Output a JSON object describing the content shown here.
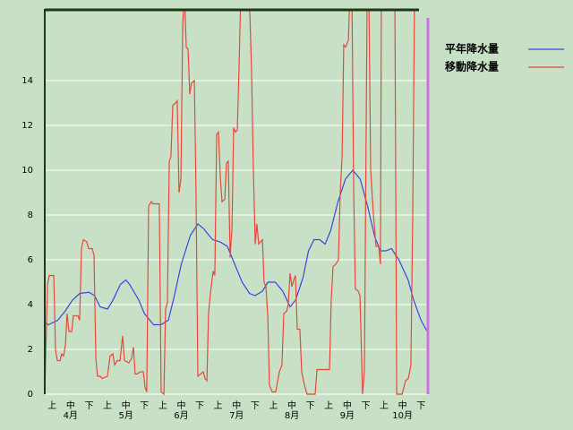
{
  "chart_data": {
    "type": "line",
    "xlim": [
      0,
      208
    ],
    "ylim": [
      0,
      17.2
    ],
    "yticks": [
      0,
      2,
      4,
      6,
      8,
      10,
      12,
      14
    ],
    "xticks": [
      {
        "value": 4,
        "label": "上"
      },
      {
        "value": 14,
        "label": "中"
      },
      {
        "value": 24,
        "label": "下"
      },
      {
        "value": 34,
        "label": "上"
      },
      {
        "value": 44,
        "label": "中"
      },
      {
        "value": 54,
        "label": "下"
      },
      {
        "value": 64,
        "label": "上"
      },
      {
        "value": 74,
        "label": "中"
      },
      {
        "value": 84,
        "label": "下"
      },
      {
        "value": 94,
        "label": "上"
      },
      {
        "value": 104,
        "label": "中"
      },
      {
        "value": 114,
        "label": "下"
      },
      {
        "value": 124,
        "label": "上"
      },
      {
        "value": 134,
        "label": "中"
      },
      {
        "value": 144,
        "label": "下"
      },
      {
        "value": 154,
        "label": "上"
      },
      {
        "value": 164,
        "label": "中"
      },
      {
        "value": 174,
        "label": "下"
      },
      {
        "value": 184,
        "label": "上"
      },
      {
        "value": 194,
        "label": "中"
      },
      {
        "value": 204,
        "label": "下"
      }
    ],
    "month_ticks": [
      {
        "value": 14,
        "label": "4月"
      },
      {
        "value": 44,
        "label": "5月"
      },
      {
        "value": 74,
        "label": "6月"
      },
      {
        "value": 104,
        "label": "7月"
      },
      {
        "value": 134,
        "label": "8月"
      },
      {
        "value": 164,
        "label": "9月"
      },
      {
        "value": 194,
        "label": "10月"
      }
    ],
    "grid": true,
    "legend": "top-right",
    "series": [
      {
        "name": "平年降水量",
        "color": "#3a46e0",
        "x": [
          0,
          2,
          7,
          11,
          15,
          19,
          24,
          27,
          30,
          34,
          37,
          41,
          44,
          46,
          51,
          54,
          59,
          63,
          67,
          70,
          74,
          79,
          83,
          86,
          91,
          95,
          99,
          103,
          107,
          111,
          114,
          118,
          121,
          125,
          129,
          133,
          136,
          140,
          143,
          146,
          149,
          152,
          155,
          159,
          163,
          167,
          171,
          175,
          179,
          182,
          185,
          188,
          192,
          197,
          200,
          204,
          208
        ],
        "values": [
          3.2,
          3.1,
          3.3,
          3.7,
          4.2,
          4.5,
          4.55,
          4.4,
          3.9,
          3.8,
          4.2,
          4.9,
          5.1,
          4.9,
          4.2,
          3.6,
          3.1,
          3.1,
          3.3,
          4.3,
          5.8,
          7.1,
          7.6,
          7.4,
          6.9,
          6.8,
          6.6,
          5.8,
          5.0,
          4.5,
          4.4,
          4.6,
          5.0,
          5.0,
          4.6,
          3.9,
          4.2,
          5.2,
          6.4,
          6.9,
          6.9,
          6.7,
          7.3,
          8.6,
          9.6,
          10.0,
          9.6,
          8.4,
          7.0,
          6.4,
          6.4,
          6.5,
          6.0,
          5.1,
          4.2,
          3.3,
          2.7
        ]
      },
      {
        "name": "移動降水量",
        "color": "#e8483a",
        "x": [
          0,
          1.5,
          2.4,
          4.9,
          5.8,
          6.8,
          8.3,
          9.2,
          10.2,
          11.2,
          12.1,
          13.1,
          14.6,
          15.5,
          18,
          18.9,
          19.9,
          20.9,
          22.8,
          23.8,
          25.7,
          26.7,
          27.7,
          28.6,
          30.1,
          31.1,
          34,
          35.4,
          36.9,
          37.9,
          39.3,
          40.8,
          42.2,
          43.2,
          45.6,
          47.1,
          48.1,
          49,
          50,
          51.9,
          53.4,
          54.4,
          55.3,
          56.3,
          57.8,
          58.7,
          62.1,
          63.1,
          64.6,
          65.5,
          66.5,
          67.5,
          68.4,
          69.4,
          70.9,
          71.8,
          72.8,
          73.8,
          74.8,
          75.7,
          76.7,
          77.7,
          78.6,
          79.6,
          81.1,
          82,
          83,
          84.5,
          85.9,
          86.9,
          87.9,
          88.8,
          89.8,
          91.3,
          92.2,
          93.2,
          94.2,
          95.1,
          96.1,
          97.6,
          98.5,
          99.5,
          100.5,
          101.5,
          102.4,
          103.4,
          104.4,
          105.3,
          106.3,
          109.2,
          111.2,
          112.1,
          113.1,
          114.1,
          115,
          116,
          117,
          118,
          118.9,
          119.9,
          120.9,
          121.8,
          123.3,
          125.2,
          127.2,
          128.6,
          129.6,
          131.1,
          132,
          133,
          134,
          135,
          135.9,
          136.9,
          138.3,
          139.3,
          140.8,
          142.2,
          146.6,
          147.6,
          154.4,
          155.3,
          156.3,
          157.8,
          159.2,
          160.2,
          161.2,
          162.1,
          163.1,
          164.6,
          165.5,
          166.5,
          167.5,
          168.4,
          169.9,
          170.9,
          172.3,
          173.3,
          174.8,
          175.7,
          176.7,
          178.2,
          179.6,
          181.1,
          182,
          182.5,
          183.5,
          189.8,
          190.8,
          193.7,
          194.7,
          195.6,
          197.1,
          198.5,
          199.5,
          200.5,
          202
        ],
        "values": [
          0,
          4.9,
          5.3,
          5.3,
          2.0,
          1.5,
          1.5,
          1.8,
          1.7,
          2.2,
          3.6,
          2.8,
          2.8,
          3.5,
          3.5,
          3.3,
          6.5,
          6.9,
          6.8,
          6.5,
          6.5,
          6.2,
          1.6,
          0.8,
          0.8,
          0.7,
          0.8,
          1.7,
          1.8,
          1.3,
          1.5,
          1.5,
          2.6,
          1.5,
          1.4,
          1.6,
          2.1,
          0.9,
          0.9,
          1.0,
          1.0,
          0.3,
          0.1,
          8.4,
          8.6,
          8.5,
          8.5,
          0.1,
          0.0,
          3.8,
          4.1,
          10.4,
          10.6,
          12.9,
          13.0,
          13.1,
          9.0,
          9.6,
          16.5,
          18,
          15.5,
          15.4,
          13.4,
          13.9,
          14.0,
          9.0,
          0.8,
          0.9,
          1.0,
          0.7,
          0.6,
          3.6,
          4.5,
          5.5,
          5.3,
          11.6,
          11.7,
          9.8,
          8.6,
          8.7,
          10.3,
          10.4,
          6.1,
          7.4,
          11.9,
          11.7,
          11.8,
          14.5,
          18,
          18,
          17.0,
          14.5,
          10.0,
          6.7,
          7.6,
          6.7,
          6.8,
          6.9,
          5.0,
          4.8,
          3.5,
          0.4,
          0.1,
          0.1,
          1.0,
          1.3,
          3.6,
          3.7,
          4.0,
          5.4,
          4.8,
          5.1,
          5.3,
          2.9,
          2.9,
          1.0,
          0.4,
          0.0,
          0.0,
          1.1,
          1.1,
          4.2,
          5.7,
          5.8,
          6.0,
          9.0,
          10.6,
          15.6,
          15.5,
          15.8,
          18,
          18,
          9.0,
          4.7,
          4.6,
          4.4,
          0.0,
          1.0,
          18,
          18,
          10,
          8,
          6.6,
          6.6,
          5.8,
          18,
          18,
          18,
          0.0,
          0.0,
          0.3,
          0.6,
          0.7,
          1.3,
          8,
          18,
          18
        ]
      }
    ]
  }
}
